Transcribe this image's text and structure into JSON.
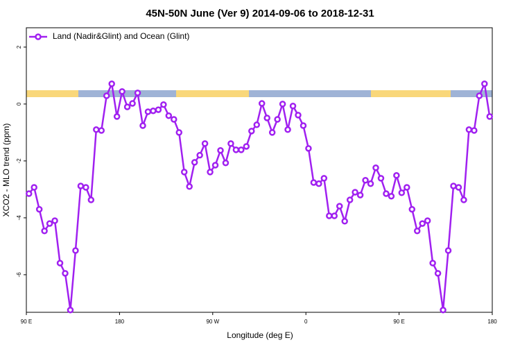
{
  "chart_data": {
    "type": "line",
    "title": "45N-50N June (Ver 9)   2014-09-06 to 2018-12-31",
    "x_label": "Longitude (deg E)",
    "y_label": "XCO2 - MLO trend (ppm)",
    "x": [
      92.5,
      97.5,
      102.5,
      107.5,
      112.5,
      117.5,
      122.5,
      127.5,
      132.5,
      137.5,
      142.5,
      147.5,
      152.5,
      157.5,
      162.5,
      167.5,
      172.5,
      177.5,
      182.5,
      187.5,
      192.5,
      197.5,
      202.5,
      207.5,
      212.5,
      217.5,
      222.5,
      227.5,
      232.5,
      237.5,
      242.5,
      247.5,
      252.5,
      257.5,
      262.5,
      267.5,
      272.5,
      277.5,
      282.5,
      287.5,
      292.5,
      297.5,
      302.5,
      307.5,
      312.5,
      317.5,
      322.5,
      327.5,
      332.5,
      337.5,
      342.5,
      347.5,
      352.5,
      357.5,
      362.5,
      367.5,
      372.5,
      377.5,
      382.5,
      387.5,
      392.5,
      397.5,
      402.5,
      407.5,
      412.5,
      417.5,
      422.5,
      427.5,
      432.5,
      437.5,
      442.5,
      447.5,
      452.5,
      457.5,
      462.5,
      467.5,
      472.5,
      477.5,
      482.5,
      487.5,
      492.5,
      497.5,
      502.5,
      507.5,
      512.5,
      517.5,
      522.5,
      527.5,
      532.5,
      537.5
    ],
    "series": [
      {
        "name": "Land (Nadir&Glint) and Ocean (Glint)",
        "color": "#a020f0",
        "values": [
          -3.15,
          -2.93,
          -3.7,
          -4.46,
          -4.2,
          -4.1,
          -5.59,
          -5.95,
          -7.24,
          -5.15,
          -2.88,
          -2.93,
          -3.37,
          -0.9,
          -0.93,
          0.29,
          0.71,
          -0.44,
          0.44,
          -0.1,
          0.02,
          0.39,
          -0.76,
          -0.27,
          -0.24,
          -0.2,
          -0.02,
          -0.41,
          -0.54,
          -1.0,
          -2.39,
          -2.9,
          -2.05,
          -1.8,
          -1.39,
          -2.39,
          -2.15,
          -1.63,
          -2.07,
          -1.39,
          -1.61,
          -1.61,
          -1.49,
          -0.95,
          -0.73,
          0.02,
          -0.49,
          -1.0,
          -0.54,
          0,
          -0.9,
          -0.07,
          -0.39,
          -0.76,
          -1.56,
          -2.76,
          -2.8,
          -2.61,
          -3.93,
          -3.93,
          -3.59,
          -4.12,
          -3.37,
          -3.1,
          -3.2,
          -2.68,
          -2.8,
          -2.24,
          -2.61,
          -3.15,
          -3.24,
          -2.51,
          -3.12,
          -2.93,
          -3.7,
          -4.46,
          -4.2,
          -4.1,
          -5.59,
          -5.95,
          -7.24,
          -5.15,
          -2.88,
          -2.93,
          -3.37,
          -0.9,
          -0.93,
          0.29,
          0.71,
          -0.44
        ]
      }
    ],
    "xlim": [
      90,
      540
    ],
    "xticks": [
      {
        "value": 90,
        "label": "90 E"
      },
      180,
      {
        "value": 270,
        "label": "90 W"
      },
      {
        "value": 360,
        "label": "0"
      },
      {
        "value": 450,
        "label": "90 E"
      },
      {
        "value": 540,
        "label": "180"
      }
    ],
    "ylim": [
      -7.32,
      2.68
    ],
    "yticks": [
      -6,
      -4,
      -2,
      0,
      2
    ],
    "legend": "top-left"
  }
}
